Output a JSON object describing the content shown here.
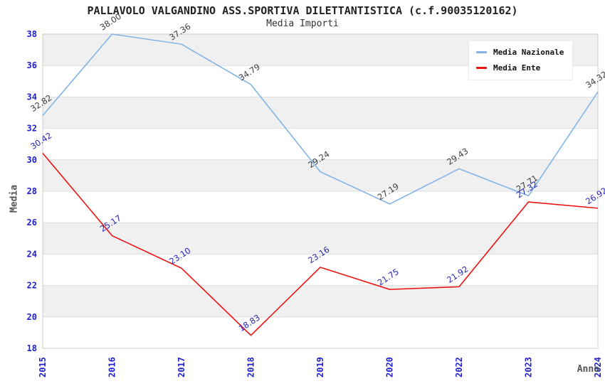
{
  "header": {
    "title": "PALLAVOLO VALGANDINO ASS.SPORTIVA DILETTANTISTICA (c.f.90035120162)",
    "subtitle": "Media Importi"
  },
  "chart_data": {
    "type": "line",
    "title": "PALLAVOLO VALGANDINO ASS.SPORTIVA DILETTANTISTICA (c.f.90035120162)",
    "subtitle": "Media Importi",
    "xlabel": "Anno",
    "ylabel": "Media",
    "categories": [
      "2015",
      "2016",
      "2017",
      "2018",
      "2019",
      "2020",
      "2022",
      "2023",
      "2024"
    ],
    "series": [
      {
        "name": "Media Nazionale",
        "color": "#82b4e6",
        "label_color": "#3d3d3d",
        "values": [
          "32.82",
          "38.00",
          "37.36",
          "34.79",
          "29.24",
          "27.19",
          "29.43",
          "27.71",
          "34.32"
        ]
      },
      {
        "name": "Media Ente",
        "color": "#ee1111",
        "label_color": "#2525bd",
        "values": [
          "30.42",
          "25.17",
          "23.10",
          "18.83",
          "23.16",
          "21.75",
          "21.92",
          "27.32",
          "26.92"
        ]
      }
    ],
    "ylim": [
      18,
      38
    ],
    "ytick_step": 2,
    "grid": true,
    "legend_position": "top-right",
    "colors": {
      "tick_label": "#2020cc",
      "band": "#f0f0f0",
      "gridline": "#dedede",
      "plot_border": "#cccccc",
      "background": "#ffffff"
    }
  }
}
